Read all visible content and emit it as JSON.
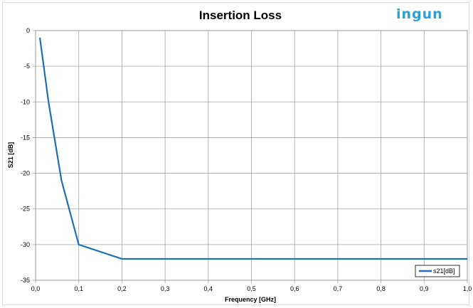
{
  "brand": {
    "logo_text": "ingun",
    "logo_color": "#2a9fd8"
  },
  "chart_data": {
    "type": "line",
    "title": "Insertion Loss",
    "xlabel": "Frequency [GHz]",
    "ylabel": "S21 [dB]",
    "xlim": [
      0,
      1.0
    ],
    "ylim": [
      -35,
      0
    ],
    "x_ticks": [
      "0,0",
      "0,1",
      "0,2",
      "0,3",
      "0,4",
      "0,5",
      "0,6",
      "0,7",
      "0,8",
      "0,9",
      "1,0"
    ],
    "y_ticks": [
      "0",
      "-5",
      "-10",
      "-15",
      "-20",
      "-25",
      "-30",
      "-35"
    ],
    "grid": true,
    "legend_position": "bottom-right",
    "series": [
      {
        "name": "s21[dB]",
        "color": "#1f6fb5",
        "x": [
          0.01,
          0.03,
          0.06,
          0.1,
          0.2,
          0.3,
          0.4,
          0.5,
          0.6,
          0.7,
          0.8,
          0.9,
          1.0
        ],
        "y": [
          -1,
          -10,
          -21,
          -30,
          -32,
          -32,
          -32,
          -32,
          -32,
          -32,
          -32,
          -32,
          -32
        ]
      }
    ]
  }
}
